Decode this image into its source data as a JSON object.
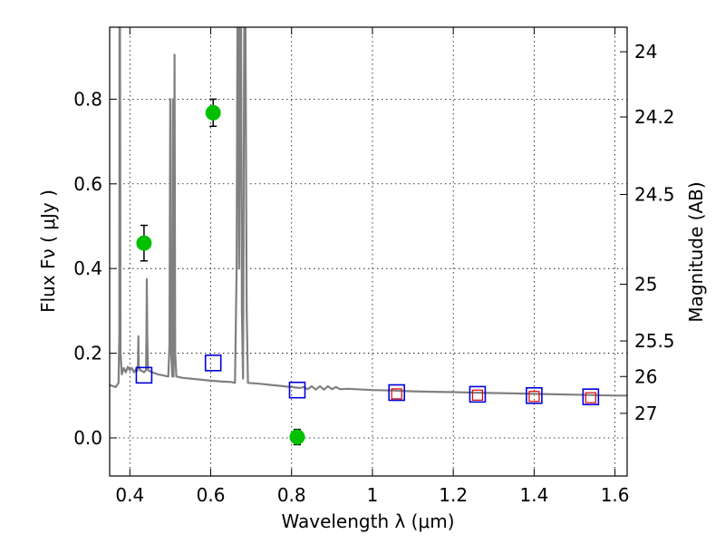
{
  "chart_data": {
    "type": "scatter",
    "xlabel": "Wavelength  λ (μm)",
    "ylabel": "Flux  Fν  ( μJy )",
    "y2label": "Magnitude (AB)",
    "xlim": [
      0.35,
      1.63
    ],
    "ylim": [
      -0.09,
      0.97
    ],
    "x_ticks": [
      0.4,
      0.6,
      0.8,
      1.0,
      1.2,
      1.4,
      1.6
    ],
    "x_tick_labels": [
      "0.4",
      "0.6",
      "0.8",
      "1",
      "1.2",
      "1.4",
      "1.6"
    ],
    "y_ticks": [
      0.0,
      0.2,
      0.4,
      0.6,
      0.8
    ],
    "y_tick_labels": [
      "0.0",
      "0.2",
      "0.4",
      "0.6",
      "0.8"
    ],
    "mag_ticks": [
      {
        "label": "24",
        "flux": 0.912
      },
      {
        "label": "24.2",
        "flux": 0.758
      },
      {
        "label": "24.5",
        "flux": 0.575
      },
      {
        "label": "25",
        "flux": 0.363
      },
      {
        "label": "25.5",
        "flux": 0.229
      },
      {
        "label": "26",
        "flux": 0.145
      },
      {
        "label": "27",
        "flux": 0.058
      }
    ],
    "grid": true,
    "colors": {
      "observed": "#00c000",
      "model_blue": "#0000dd",
      "model_red": "#dd0000",
      "spectrum": "#808080"
    },
    "series": [
      {
        "kind": "observed",
        "points": [
          {
            "x": 0.435,
            "y": 0.46,
            "err": 0.042
          },
          {
            "x": 0.606,
            "y": 0.768,
            "err": 0.032
          },
          {
            "x": 0.814,
            "y": 0.002,
            "err": 0.018
          }
        ]
      },
      {
        "kind": "model_blue",
        "points": [
          {
            "x": 0.435,
            "y": 0.148
          },
          {
            "x": 0.606,
            "y": 0.177
          },
          {
            "x": 0.814,
            "y": 0.113
          },
          {
            "x": 1.06,
            "y": 0.107
          },
          {
            "x": 1.26,
            "y": 0.103
          },
          {
            "x": 1.4,
            "y": 0.1
          },
          {
            "x": 1.54,
            "y": 0.097
          }
        ]
      },
      {
        "kind": "model_red",
        "points": [
          {
            "x": 1.06,
            "y": 0.104
          },
          {
            "x": 1.26,
            "y": 0.101
          },
          {
            "x": 1.4,
            "y": 0.098
          },
          {
            "x": 1.54,
            "y": 0.095
          }
        ]
      },
      {
        "kind": "spectrum",
        "points": [
          [
            0.35,
            0.125
          ],
          [
            0.365,
            0.12
          ],
          [
            0.372,
            0.13
          ],
          [
            0.374,
            0.25
          ],
          [
            0.3745,
            0.97
          ],
          [
            0.3755,
            0.97
          ],
          [
            0.377,
            0.2
          ],
          [
            0.38,
            0.15
          ],
          [
            0.385,
            0.165
          ],
          [
            0.39,
            0.155
          ],
          [
            0.395,
            0.168
          ],
          [
            0.4,
            0.16
          ],
          [
            0.405,
            0.165
          ],
          [
            0.41,
            0.155
          ],
          [
            0.415,
            0.162
          ],
          [
            0.418,
            0.158
          ],
          [
            0.42,
            0.17
          ],
          [
            0.421,
            0.24
          ],
          [
            0.422,
            0.17
          ],
          [
            0.425,
            0.16
          ],
          [
            0.43,
            0.158
          ],
          [
            0.435,
            0.155
          ],
          [
            0.44,
            0.16
          ],
          [
            0.441,
            0.24
          ],
          [
            0.442,
            0.375
          ],
          [
            0.443,
            0.24
          ],
          [
            0.445,
            0.16
          ],
          [
            0.455,
            0.155
          ],
          [
            0.47,
            0.15
          ],
          [
            0.485,
            0.147
          ],
          [
            0.495,
            0.145
          ],
          [
            0.498,
            0.22
          ],
          [
            0.5,
            0.8
          ],
          [
            0.501,
            0.22
          ],
          [
            0.505,
            0.145
          ],
          [
            0.5065,
            0.8
          ],
          [
            0.508,
            0.145
          ],
          [
            0.509,
            0.22
          ],
          [
            0.5105,
            0.905
          ],
          [
            0.512,
            0.2
          ],
          [
            0.515,
            0.145
          ],
          [
            0.53,
            0.142
          ],
          [
            0.55,
            0.14
          ],
          [
            0.57,
            0.138
          ],
          [
            0.6,
            0.135
          ],
          [
            0.63,
            0.133
          ],
          [
            0.65,
            0.132
          ],
          [
            0.66,
            0.13
          ],
          [
            0.664,
            0.4
          ],
          [
            0.666,
            0.97
          ],
          [
            0.668,
            0.97
          ],
          [
            0.67,
            0.4
          ],
          [
            0.673,
            0.97
          ],
          [
            0.675,
            0.97
          ],
          [
            0.677,
            0.3
          ],
          [
            0.68,
            0.14
          ],
          [
            0.683,
            0.97
          ],
          [
            0.686,
            0.97
          ],
          [
            0.689,
            0.3
          ],
          [
            0.692,
            0.13
          ],
          [
            0.72,
            0.128
          ],
          [
            0.75,
            0.125
          ],
          [
            0.78,
            0.122
          ],
          [
            0.8,
            0.12
          ],
          [
            0.82,
            0.118
          ],
          [
            0.83,
            0.12
          ],
          [
            0.84,
            0.115
          ],
          [
            0.85,
            0.122
          ],
          [
            0.86,
            0.114
          ],
          [
            0.87,
            0.122
          ],
          [
            0.88,
            0.114
          ],
          [
            0.89,
            0.122
          ],
          [
            0.9,
            0.115
          ],
          [
            0.91,
            0.12
          ],
          [
            0.92,
            0.115
          ],
          [
            0.94,
            0.116
          ],
          [
            0.96,
            0.115
          ],
          [
            1.0,
            0.113
          ],
          [
            1.05,
            0.112
          ],
          [
            1.1,
            0.11
          ],
          [
            1.15,
            0.109
          ],
          [
            1.2,
            0.108
          ],
          [
            1.25,
            0.107
          ],
          [
            1.3,
            0.106
          ],
          [
            1.35,
            0.105
          ],
          [
            1.4,
            0.104
          ],
          [
            1.45,
            0.103
          ],
          [
            1.5,
            0.102
          ],
          [
            1.55,
            0.101
          ],
          [
            1.6,
            0.1
          ],
          [
            1.63,
            0.1
          ]
        ]
      }
    ]
  }
}
